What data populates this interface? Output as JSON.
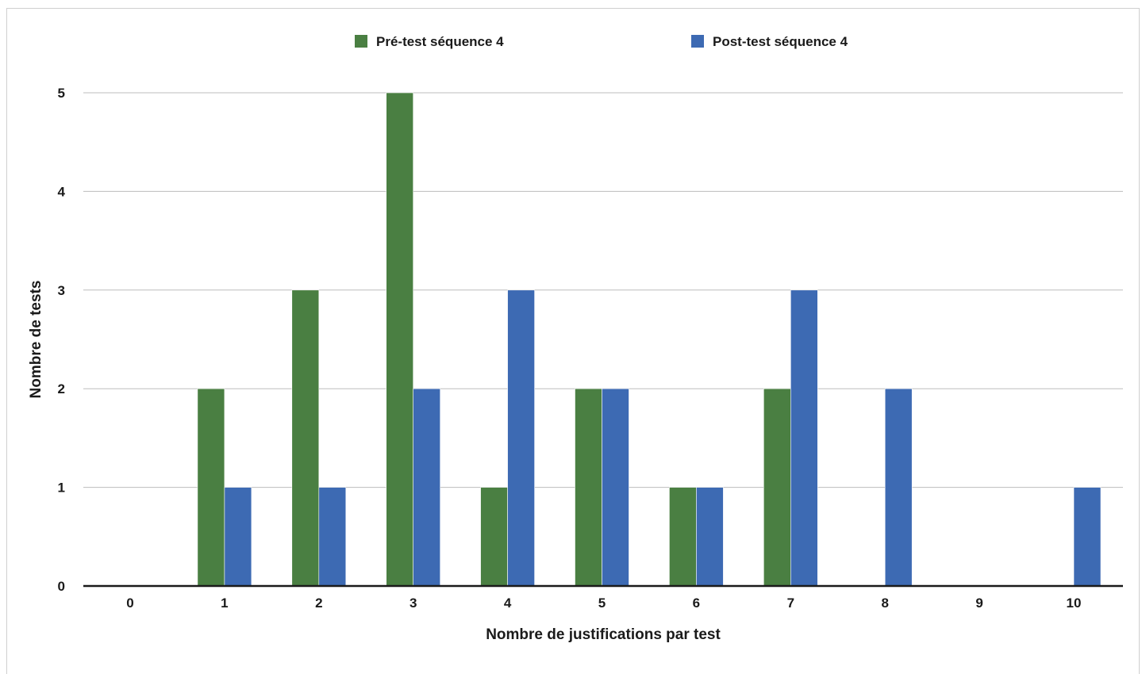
{
  "chart_data": {
    "type": "bar",
    "xlabel": "Nombre de justifications par test",
    "ylabel": "Nombre de tests",
    "categories": [
      "0",
      "1",
      "2",
      "3",
      "4",
      "5",
      "6",
      "7",
      "8",
      "9",
      "10"
    ],
    "ylim": [
      0,
      5
    ],
    "yticks": [
      "0",
      "1",
      "2",
      "3",
      "4",
      "5"
    ],
    "grid": true,
    "legend_position": "top",
    "series": [
      {
        "name": "Pré-test séquence 4",
        "color": "#4a7f42",
        "values": [
          0,
          2,
          3,
          5,
          1,
          2,
          1,
          2,
          0,
          0,
          0
        ]
      },
      {
        "name": "Post-test séquence 4",
        "color": "#3d6ab3",
        "values": [
          0,
          1,
          1,
          2,
          3,
          2,
          1,
          3,
          2,
          0,
          1
        ]
      }
    ]
  }
}
